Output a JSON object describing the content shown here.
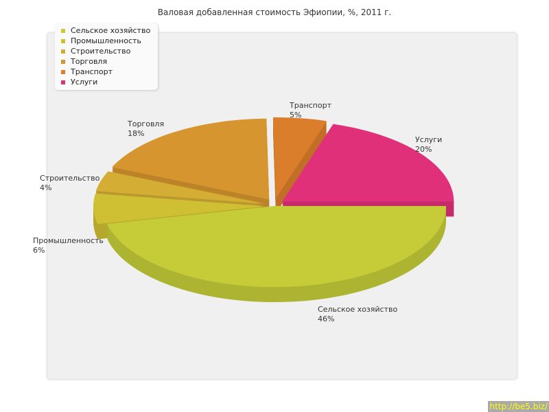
{
  "chart_data": {
    "type": "pie",
    "title": "Валовая добавленная стоимость Эфиопии, %, 2011 г.",
    "categories": [
      "Сельское хозяйство",
      "Промышленность",
      "Строительство",
      "Торговля",
      "Транспорт",
      "Услуги"
    ],
    "values": [
      46,
      6,
      4,
      18,
      5,
      20
    ],
    "labels": [
      "46%",
      "6%",
      "4%",
      "18%",
      "5%",
      "20%"
    ],
    "colors": [
      "#c5cc38",
      "#cfbf33",
      "#d4ad35",
      "#d6952f",
      "#db7e2b",
      "#e0307a"
    ],
    "exploded": [
      false,
      true,
      true,
      true,
      true,
      true
    ],
    "legend_position": "top-left",
    "style": "3d"
  },
  "watermark": "http://be5.biz/"
}
